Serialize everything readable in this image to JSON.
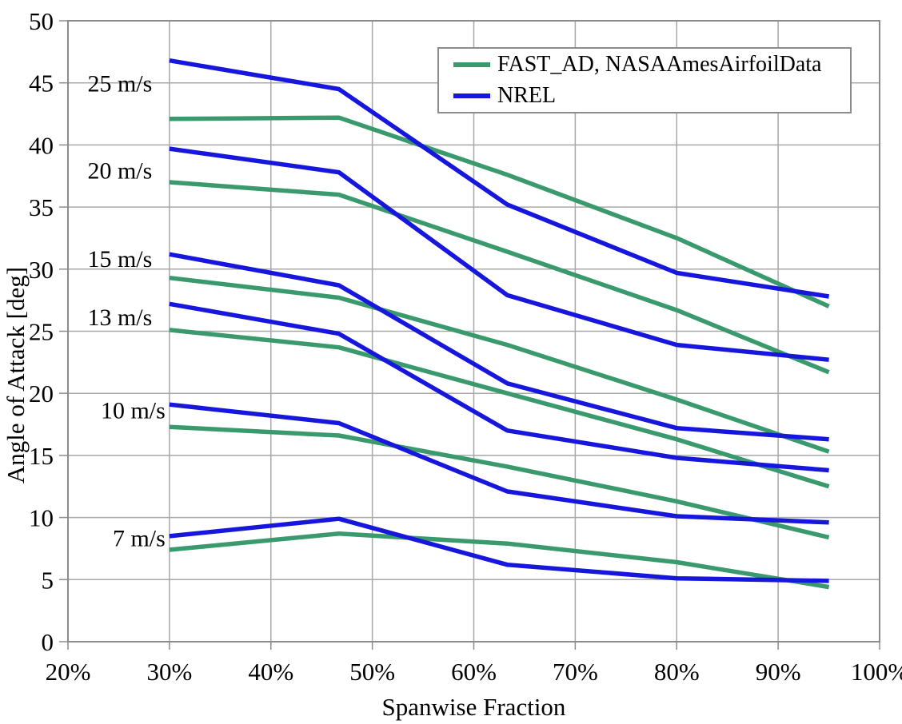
{
  "chart_data": {
    "type": "line",
    "title": "",
    "xlabel": "Spanwise Fraction",
    "ylabel": "Angle of Attack [deg]",
    "xlim": [
      20,
      100
    ],
    "ylim": [
      0,
      50
    ],
    "grid": true,
    "x_tick_labels": [
      "20%",
      "30%",
      "40%",
      "50%",
      "60%",
      "70%",
      "80%",
      "90%",
      "100%"
    ],
    "x_tick_values": [
      20,
      30,
      40,
      50,
      60,
      70,
      80,
      90,
      100
    ],
    "y_tick_labels": [
      "0",
      "5",
      "10",
      "15",
      "20",
      "25",
      "30",
      "35",
      "40",
      "45",
      "50"
    ],
    "y_tick_values": [
      0,
      5,
      10,
      15,
      20,
      25,
      30,
      35,
      40,
      45,
      50
    ],
    "categories": [
      30,
      46.7,
      63.3,
      80,
      95
    ],
    "legend_position": "top-right",
    "series": [
      {
        "name": "FAST_AD 25 m/s",
        "group": "FAST_AD, NASAAmesAirfoilData",
        "wind_speed": "25 m/s",
        "color": "#3a9a6e",
        "values": [
          42.1,
          42.2,
          37.6,
          32.5,
          27.0
        ]
      },
      {
        "name": "FAST_AD 20 m/s",
        "group": "FAST_AD, NASAAmesAirfoilData",
        "wind_speed": "20 m/s",
        "color": "#3a9a6e",
        "values": [
          37.0,
          36.0,
          31.4,
          26.7,
          21.7
        ]
      },
      {
        "name": "FAST_AD 15 m/s",
        "group": "FAST_AD, NASAAmesAirfoilData",
        "wind_speed": "15 m/s",
        "color": "#3a9a6e",
        "values": [
          29.3,
          27.7,
          23.9,
          19.5,
          15.3
        ]
      },
      {
        "name": "FAST_AD 13 m/s",
        "group": "FAST_AD, NASAAmesAirfoilData",
        "wind_speed": "13 m/s",
        "color": "#3a9a6e",
        "values": [
          25.1,
          23.7,
          20.0,
          16.3,
          12.5
        ]
      },
      {
        "name": "FAST_AD 10 m/s",
        "group": "FAST_AD, NASAAmesAirfoilData",
        "wind_speed": "10 m/s",
        "color": "#3a9a6e",
        "values": [
          17.3,
          16.6,
          14.1,
          11.3,
          8.4
        ]
      },
      {
        "name": "FAST_AD 7 m/s",
        "group": "FAST_AD, NASAAmesAirfoilData",
        "wind_speed": "7 m/s",
        "color": "#3a9a6e",
        "values": [
          7.4,
          8.7,
          7.9,
          6.4,
          4.4
        ]
      },
      {
        "name": "NREL 25 m/s",
        "group": "NREL",
        "wind_speed": "25 m/s",
        "color": "#1616dc",
        "values": [
          46.8,
          44.5,
          35.2,
          29.7,
          27.8
        ]
      },
      {
        "name": "NREL 20 m/s",
        "group": "NREL",
        "wind_speed": "20 m/s",
        "color": "#1616dc",
        "values": [
          39.7,
          37.8,
          27.9,
          23.9,
          22.7
        ]
      },
      {
        "name": "NREL 15 m/s",
        "group": "NREL",
        "wind_speed": "15 m/s",
        "color": "#1616dc",
        "values": [
          31.2,
          28.7,
          20.8,
          17.2,
          16.3
        ]
      },
      {
        "name": "NREL 13 m/s",
        "group": "NREL",
        "wind_speed": "13 m/s",
        "color": "#1616dc",
        "values": [
          27.2,
          24.8,
          17.0,
          14.8,
          13.8
        ]
      },
      {
        "name": "NREL 10 m/s",
        "group": "NREL",
        "wind_speed": "10 m/s",
        "color": "#1616dc",
        "values": [
          19.1,
          17.6,
          12.1,
          10.1,
          9.6
        ]
      },
      {
        "name": "NREL 7 m/s",
        "group": "NREL",
        "wind_speed": "7 m/s",
        "color": "#1616dc",
        "values": [
          8.5,
          9.9,
          6.2,
          5.1,
          4.9
        ]
      }
    ],
    "annotations": [
      {
        "label": "25 m/s",
        "x": 28.3,
        "y": 45.0
      },
      {
        "label": "20 m/s",
        "x": 28.3,
        "y": 38.0
      },
      {
        "label": "15 m/s",
        "x": 28.3,
        "y": 30.9
      },
      {
        "label": "13 m/s",
        "x": 28.3,
        "y": 26.2
      },
      {
        "label": "10 m/s",
        "x": 29.6,
        "y": 18.7
      },
      {
        "label": "7 m/s",
        "x": 29.6,
        "y": 8.4
      }
    ]
  },
  "legend": {
    "items": [
      {
        "label": "FAST_AD, NASAAmesAirfoilData",
        "color": "#3a9a6e"
      },
      {
        "label": "NREL",
        "color": "#1616dc"
      }
    ]
  },
  "colors": {
    "fast_ad_line": "#3a9a6e",
    "nrel_line": "#1616dc",
    "gridline": "#a8a8a8",
    "axis_border": "#8c8c8c",
    "text": "#000000",
    "background": "#ffffff"
  }
}
